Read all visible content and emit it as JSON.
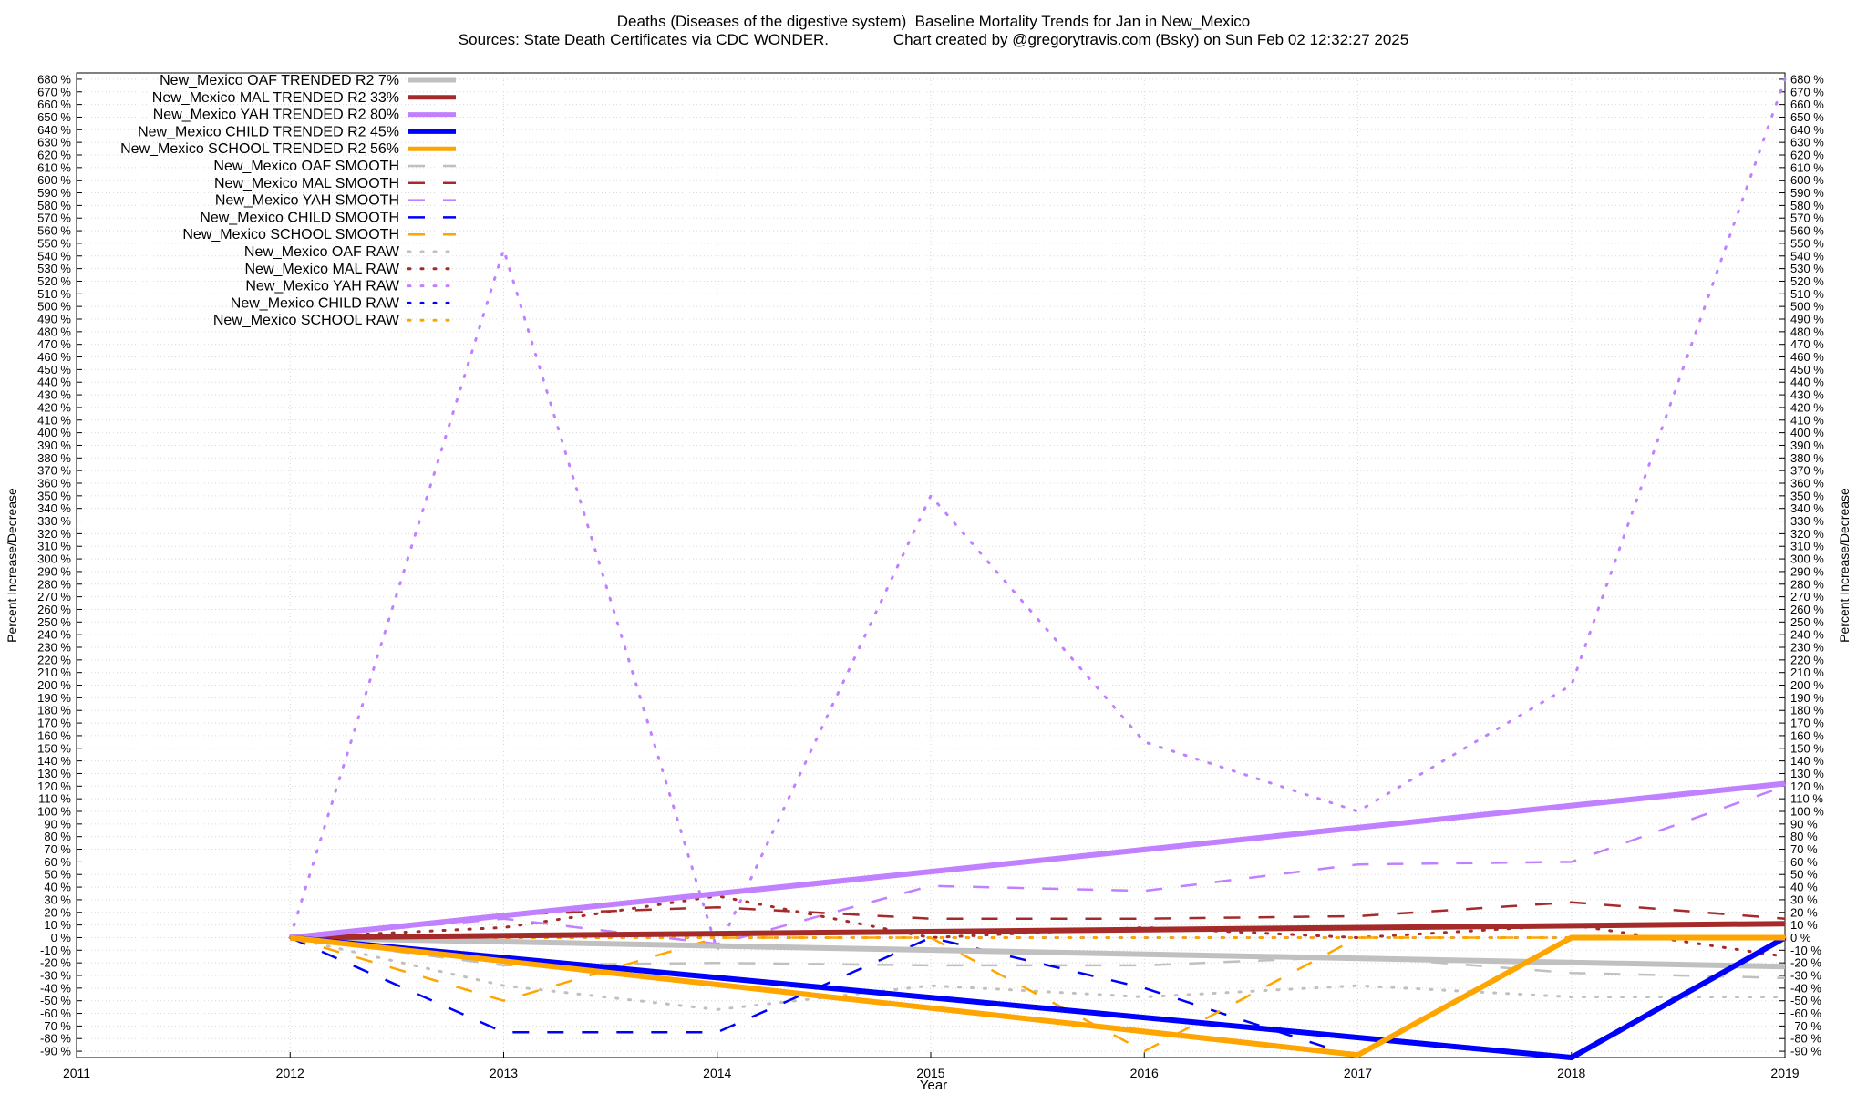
{
  "chart_data": {
    "type": "line",
    "title": "Deaths (Diseases of the digestive system)  Baseline Mortality Trends for Jan in New_Mexico",
    "subtitle": "Sources: State Death Certificates via CDC WONDER.               Chart created by @gregorytravis.com (Bsky) on Sun Feb 02 12:32:27 2025",
    "xlabel": "Year",
    "ylabel": "Percent Increase/Decrease",
    "y2label": "Percent Increase/Decrease",
    "xlim": [
      2011,
      2019
    ],
    "ylim": [
      -95,
      685
    ],
    "x_ticks": [
      "2011",
      "2012",
      "2013",
      "2014",
      "2015",
      "2016",
      "2017",
      "2018",
      "2019"
    ],
    "y_tick_start": -90,
    "y_tick_end": 680,
    "y_tick_step": 10,
    "y_tick_suffix": " %",
    "grid": true,
    "legend_position": "top-left",
    "series": [
      {
        "name": "New_Mexico OAF TRENDED R2  7%",
        "style": "solid",
        "color": "#c0c0c0",
        "x": [
          2012,
          2019
        ],
        "values": [
          0,
          -23
        ]
      },
      {
        "name": "New_Mexico MAL TRENDED R2  33%",
        "style": "solid",
        "color": "#a52a2a",
        "x": [
          2012,
          2019
        ],
        "values": [
          0,
          11
        ]
      },
      {
        "name": "New_Mexico YAH TRENDED R2  80%",
        "style": "solid",
        "color": "#c080ff",
        "x": [
          2012,
          2019
        ],
        "values": [
          0,
          122
        ]
      },
      {
        "name": "New_Mexico CHILD TRENDED R2  45%",
        "style": "solid",
        "color": "#0000ff",
        "x": [
          2012,
          2018,
          2019
        ],
        "values": [
          0,
          -95,
          0
        ]
      },
      {
        "name": "New_Mexico SCHOOL TRENDED R2  56%",
        "style": "solid",
        "color": "#ffa500",
        "x": [
          2012,
          2017,
          2018,
          2019
        ],
        "values": [
          0,
          -93,
          0,
          0
        ]
      },
      {
        "name": "New_Mexico OAF SMOOTH",
        "style": "dash",
        "color": "#c0c0c0",
        "x": [
          2012,
          2013,
          2014,
          2015,
          2016,
          2017,
          2018,
          2019
        ],
        "values": [
          0,
          -22,
          -20,
          -22,
          -22,
          -15,
          -28,
          -32
        ]
      },
      {
        "name": "New_Mexico MAL SMOOTH",
        "style": "dash",
        "color": "#a52a2a",
        "x": [
          2012,
          2013,
          2014,
          2015,
          2016,
          2017,
          2018,
          2019
        ],
        "values": [
          0,
          18,
          24,
          15,
          15,
          17,
          28,
          15
        ]
      },
      {
        "name": "New_Mexico YAH SMOOTH",
        "style": "dash",
        "color": "#c080ff",
        "x": [
          2012,
          2013,
          2014,
          2015,
          2016,
          2017,
          2018,
          2019
        ],
        "values": [
          0,
          15,
          -5,
          41,
          37,
          58,
          60,
          120
        ]
      },
      {
        "name": "New_Mexico CHILD SMOOTH",
        "style": "dash",
        "color": "#0000ff",
        "x": [
          2012,
          2013,
          2014,
          2015,
          2016,
          2017
        ],
        "values": [
          0,
          -75,
          -75,
          0,
          -40,
          -95
        ]
      },
      {
        "name": "New_Mexico SCHOOL SMOOTH",
        "style": "dash",
        "color": "#ffa500",
        "x": [
          2012,
          2013,
          2014,
          2015,
          2016,
          2017,
          2018,
          2019
        ],
        "values": [
          0,
          -50,
          0,
          0,
          -90,
          0,
          0,
          0
        ]
      },
      {
        "name": "New_Mexico OAF RAW",
        "style": "dot",
        "color": "#c0c0c0",
        "x": [
          2012,
          2013,
          2014,
          2015,
          2016,
          2017,
          2018,
          2019
        ],
        "values": [
          0,
          -38,
          -57,
          -38,
          -47,
          -38,
          -47,
          -47
        ]
      },
      {
        "name": "New_Mexico MAL RAW",
        "style": "dot",
        "color": "#a52a2a",
        "x": [
          2012,
          2013,
          2014,
          2015,
          2016,
          2017,
          2018,
          2019
        ],
        "values": [
          0,
          8,
          33,
          0,
          8,
          0,
          10,
          -15
        ]
      },
      {
        "name": "New_Mexico YAH RAW",
        "style": "dot",
        "color": "#c080ff",
        "x": [
          2012,
          2013,
          2014,
          2015,
          2016,
          2017,
          2018,
          2019
        ],
        "values": [
          0,
          545,
          -10,
          350,
          155,
          100,
          200,
          680
        ]
      },
      {
        "name": "New_Mexico CHILD RAW",
        "style": "dot",
        "color": "#0000ff",
        "x": [
          2012,
          2013,
          2014,
          2015,
          2016,
          2017,
          2018,
          2019
        ],
        "values": [
          0,
          0,
          0,
          0,
          0,
          0,
          0,
          0
        ]
      },
      {
        "name": "New_Mexico SCHOOL RAW",
        "style": "dot",
        "color": "#ffa500",
        "x": [
          2012,
          2013,
          2014,
          2015,
          2016,
          2017,
          2018,
          2019
        ],
        "values": [
          0,
          0,
          0,
          0,
          0,
          0,
          0,
          0
        ]
      }
    ]
  }
}
